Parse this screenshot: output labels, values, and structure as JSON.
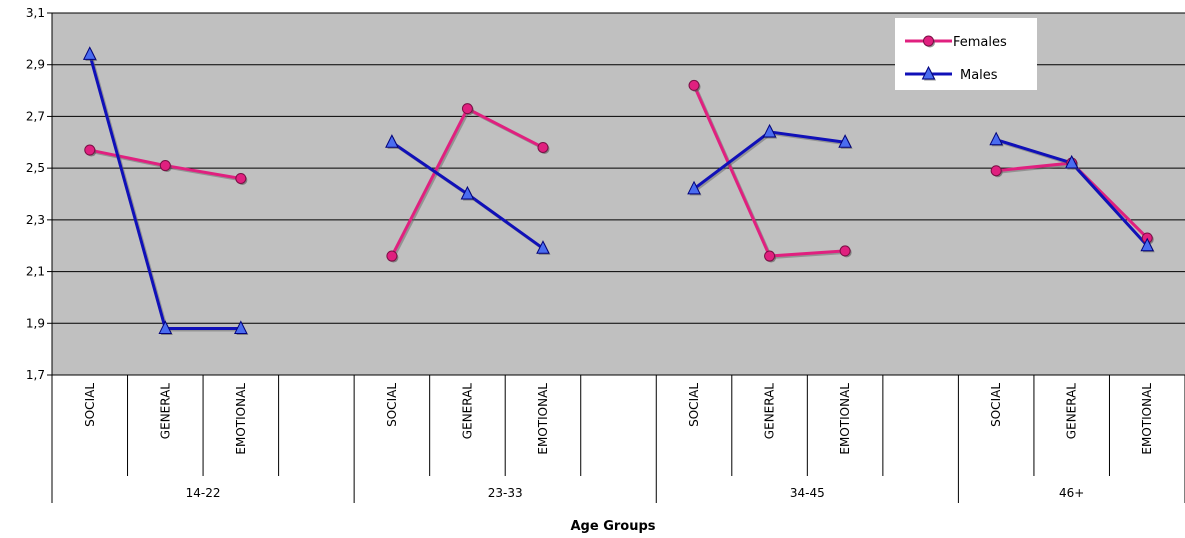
{
  "chart_data": {
    "type": "line",
    "xlabel": "Age Groups",
    "ylabel": "",
    "ylim": [
      1.7,
      3.1
    ],
    "yticks": [
      "1,7",
      "1,9",
      "2,1",
      "2,3",
      "2,5",
      "2,7",
      "2,9",
      "3,1"
    ],
    "grid": true,
    "legend_position": "top-right",
    "groups": [
      {
        "name": "14-22",
        "categories": [
          "SOCIAL",
          "GENERAL",
          "EMOTIONAL"
        ]
      },
      {
        "name": "23-33",
        "categories": [
          "SOCIAL",
          "GENERAL",
          "EMOTIONAL"
        ]
      },
      {
        "name": "34-45",
        "categories": [
          "SOCIAL",
          "GENERAL",
          "EMOTIONAL"
        ]
      },
      {
        "name": "46+",
        "categories": [
          "SOCIAL",
          "GENERAL",
          "EMOTIONAL"
        ]
      }
    ],
    "series": [
      {
        "name": "Females",
        "color": "#e0207f",
        "marker": "circle",
        "groups": [
          [
            2.57,
            2.51,
            2.46
          ],
          [
            2.16,
            2.73,
            2.58
          ],
          [
            2.82,
            2.16,
            2.18
          ],
          [
            2.49,
            2.52,
            2.23
          ]
        ]
      },
      {
        "name": "Males",
        "color": "#1010b8",
        "marker": "triangle",
        "groups": [
          [
            2.94,
            1.88,
            1.88
          ],
          [
            2.6,
            2.4,
            2.19
          ],
          [
            2.42,
            2.64,
            2.6
          ],
          [
            2.61,
            2.52,
            2.2
          ]
        ]
      }
    ],
    "plot_background": "#c0c0c0"
  }
}
